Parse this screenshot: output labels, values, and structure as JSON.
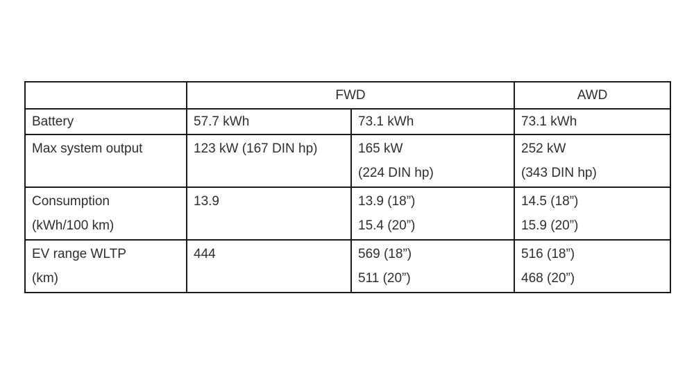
{
  "page": {
    "background_color": "#ffffff",
    "text_color": "#2e2e2e",
    "border_color": "#1a1a1a"
  },
  "table": {
    "header": {
      "empty": "",
      "fwd": "FWD",
      "awd": "AWD"
    },
    "rows": [
      {
        "label_lines": [
          "Battery"
        ],
        "fwd_small_lines": [
          "57.7 kWh"
        ],
        "fwd_large_lines": [
          "73.1 kWh"
        ],
        "awd_lines": [
          "73.1 kWh"
        ]
      },
      {
        "label_lines": [
          "Max system output"
        ],
        "fwd_small_lines": [
          "123 kW (167 DIN hp)"
        ],
        "fwd_large_lines": [
          "165 kW",
          "(224 DIN hp)"
        ],
        "awd_lines": [
          "252 kW",
          "(343 DIN hp)"
        ]
      },
      {
        "label_lines": [
          "Consumption",
          "(kWh/100 km)"
        ],
        "fwd_small_lines": [
          "13.9"
        ],
        "fwd_large_lines": [
          "13.9 (18”)",
          "15.4 (20”)"
        ],
        "awd_lines": [
          "14.5 (18”)",
          "15.9 (20”)"
        ]
      },
      {
        "label_lines": [
          "EV range WLTP",
          "(km)"
        ],
        "fwd_small_lines": [
          "444"
        ],
        "fwd_large_lines": [
          "569 (18”)",
          "511 (20”)"
        ],
        "awd_lines": [
          "516 (18”)",
          "468 (20”)"
        ]
      }
    ]
  }
}
